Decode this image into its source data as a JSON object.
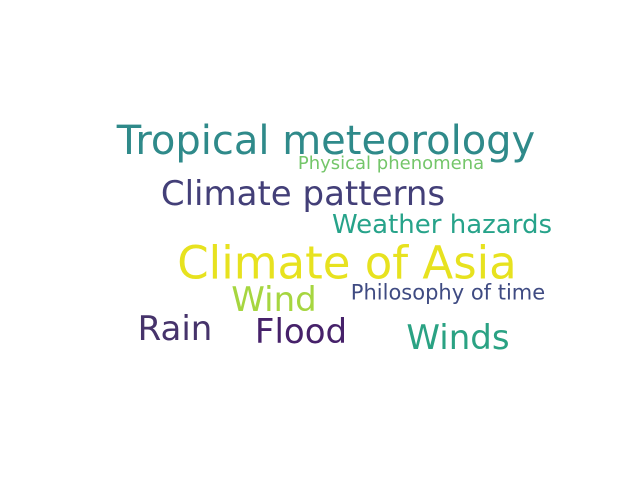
{
  "words": [
    {
      "text": "Tropical meteorology",
      "color": "#2f8a8a"
    },
    {
      "text": "Physical phenomena",
      "color": "#74c66a"
    },
    {
      "text": "Climate patterns",
      "color": "#433f78"
    },
    {
      "text": "Weather hazards",
      "color": "#27a38a"
    },
    {
      "text": "Climate of Asia",
      "color": "#e7e21f"
    },
    {
      "text": "Wind",
      "color": "#a6d640"
    },
    {
      "text": "Philosophy of time",
      "color": "#3f4b82"
    },
    {
      "text": "Rain",
      "color": "#46336b"
    },
    {
      "text": "Flood",
      "color": "#46216a"
    },
    {
      "text": "Winds",
      "color": "#2aa283"
    }
  ]
}
